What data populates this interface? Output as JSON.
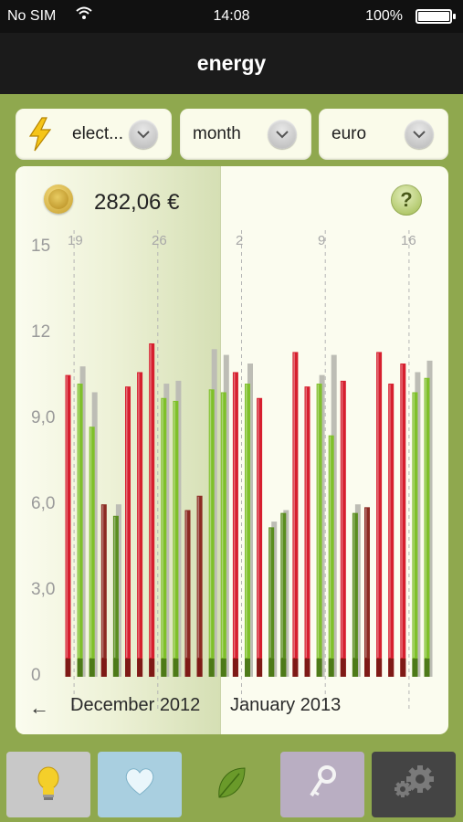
{
  "status_bar": {
    "carrier": "No SIM",
    "time": "14:08",
    "battery": "100%",
    "battery_level": 1.0
  },
  "nav": {
    "title": "energy"
  },
  "selectors": [
    {
      "label": "elect...",
      "icon": "lightning-icon"
    },
    {
      "label": "month"
    },
    {
      "label": "euro"
    }
  ],
  "summary": {
    "total": "282,06 €",
    "icon": "coin-icon",
    "help_label": "?"
  },
  "colors": {
    "red_bar": "#d61f2e",
    "green_bar": "#7fc02a",
    "dark_red_bar": "#8c2a22",
    "dark_green_bar": "#5a8d1f",
    "gray_bar": "#bdbdb5",
    "card": "#fbfcef",
    "frame": "#8fa84e"
  },
  "chart_data": {
    "type": "bar",
    "ylim": [
      0,
      15
    ],
    "y_ticks": [
      "15",
      "12",
      "9,0",
      "6,0",
      "3,0",
      "0"
    ],
    "x_tick_labels": [
      "19",
      "26",
      "2",
      "9",
      "16"
    ],
    "month_labels": [
      "December 2012",
      "January 2013"
    ],
    "days": [
      {
        "day": "2012-12-18",
        "value": 10.5,
        "color": "red"
      },
      {
        "day": "2012-12-19",
        "value": 10.2,
        "compare": 10.8,
        "color": "green"
      },
      {
        "day": "2012-12-20",
        "value": 8.7,
        "compare": 9.9,
        "color": "green"
      },
      {
        "day": "2012-12-21",
        "value": 6.0,
        "color": "dark_red"
      },
      {
        "day": "2012-12-22",
        "value": 5.6,
        "compare": 6.0,
        "color": "dark_green"
      },
      {
        "day": "2012-12-23",
        "value": 10.1,
        "color": "red"
      },
      {
        "day": "2012-12-24",
        "value": 10.6,
        "color": "red"
      },
      {
        "day": "2012-12-25",
        "value": 11.6,
        "color": "red"
      },
      {
        "day": "2012-12-26",
        "value": 9.7,
        "compare": 10.2,
        "color": "green"
      },
      {
        "day": "2012-12-27",
        "value": 9.6,
        "compare": 10.3,
        "color": "green"
      },
      {
        "day": "2012-12-28",
        "value": 5.8,
        "color": "dark_red"
      },
      {
        "day": "2012-12-29",
        "value": 6.3,
        "color": "dark_red"
      },
      {
        "day": "2012-12-30",
        "value": 10.0,
        "compare": 11.4,
        "color": "green"
      },
      {
        "day": "2012-12-31",
        "value": 9.9,
        "compare": 11.2,
        "color": "green"
      },
      {
        "day": "2013-01-01",
        "value": 10.6,
        "color": "red"
      },
      {
        "day": "2013-01-02",
        "value": 10.2,
        "compare": 10.9,
        "color": "green"
      },
      {
        "day": "2013-01-03",
        "value": 9.7,
        "color": "red"
      },
      {
        "day": "2013-01-04",
        "value": 5.2,
        "compare": 5.4,
        "color": "dark_green"
      },
      {
        "day": "2013-01-05",
        "value": 5.7,
        "compare": 5.8,
        "color": "dark_green"
      },
      {
        "day": "2013-01-06",
        "value": 11.3,
        "color": "red"
      },
      {
        "day": "2013-01-07",
        "value": 10.1,
        "color": "red"
      },
      {
        "day": "2013-01-08",
        "value": 10.2,
        "compare": 10.5,
        "color": "green"
      },
      {
        "day": "2013-01-09",
        "value": 8.4,
        "compare": 11.2,
        "color": "green"
      },
      {
        "day": "2013-01-10",
        "value": 10.3,
        "color": "red"
      },
      {
        "day": "2013-01-11",
        "value": 5.7,
        "compare": 6.0,
        "color": "dark_green"
      },
      {
        "day": "2013-01-12",
        "value": 5.9,
        "color": "dark_red"
      },
      {
        "day": "2013-01-13",
        "value": 11.3,
        "color": "red"
      },
      {
        "day": "2013-01-14",
        "value": 10.2,
        "color": "red"
      },
      {
        "day": "2013-01-15",
        "value": 10.9,
        "color": "red"
      },
      {
        "day": "2013-01-16",
        "value": 9.9,
        "compare": 10.6,
        "color": "green"
      },
      {
        "day": "2013-01-17",
        "value": 10.4,
        "compare": 11.0,
        "color": "green"
      }
    ]
  },
  "tabs": [
    {
      "name": "tips",
      "icon": "lightbulb-icon",
      "bg": "#c8c8c8"
    },
    {
      "name": "favorites",
      "icon": "heart-icon",
      "bg": "#a9cfe0"
    },
    {
      "name": "energy",
      "icon": "leaf-icon",
      "bg": "#8fa84e",
      "active": true
    },
    {
      "name": "access",
      "icon": "key-icon",
      "bg": "#b9aec2"
    },
    {
      "name": "settings",
      "icon": "gear-icon",
      "bg": "#444444"
    }
  ]
}
